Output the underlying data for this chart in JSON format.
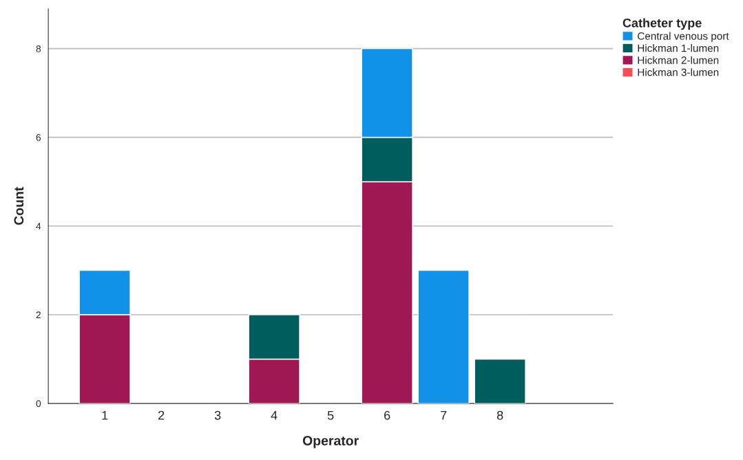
{
  "chart_data": {
    "type": "bar",
    "stacked": true,
    "xlabel": "Operator",
    "ylabel": "Count",
    "legend_title": "Catheter type",
    "x": [
      1,
      2,
      3,
      4,
      5,
      6,
      7,
      8
    ],
    "xlim": [
      0,
      10
    ],
    "xticks": [
      1,
      2,
      3,
      4,
      5,
      6,
      7,
      8
    ],
    "ylim": [
      0,
      8.9
    ],
    "yticks": [
      0,
      2,
      4,
      6,
      8
    ],
    "grid": "y",
    "legend": "top right",
    "series": [
      {
        "name": "Hickman 3-lumen",
        "color": "#fa4d56",
        "values": [
          0,
          0,
          0,
          0,
          0,
          0,
          0,
          0
        ]
      },
      {
        "name": "Hickman 2-lumen",
        "color": "#9f1853",
        "values": [
          2,
          0,
          0,
          1,
          0,
          5,
          0,
          0
        ]
      },
      {
        "name": "Hickman 1-lumen",
        "color": "#005d5d",
        "values": [
          0,
          0,
          0,
          1,
          0,
          1,
          0,
          1
        ]
      },
      {
        "name": "Central venous port",
        "color": "#1192e8",
        "values": [
          1,
          0,
          0,
          0,
          0,
          2,
          3,
          0
        ]
      }
    ]
  }
}
